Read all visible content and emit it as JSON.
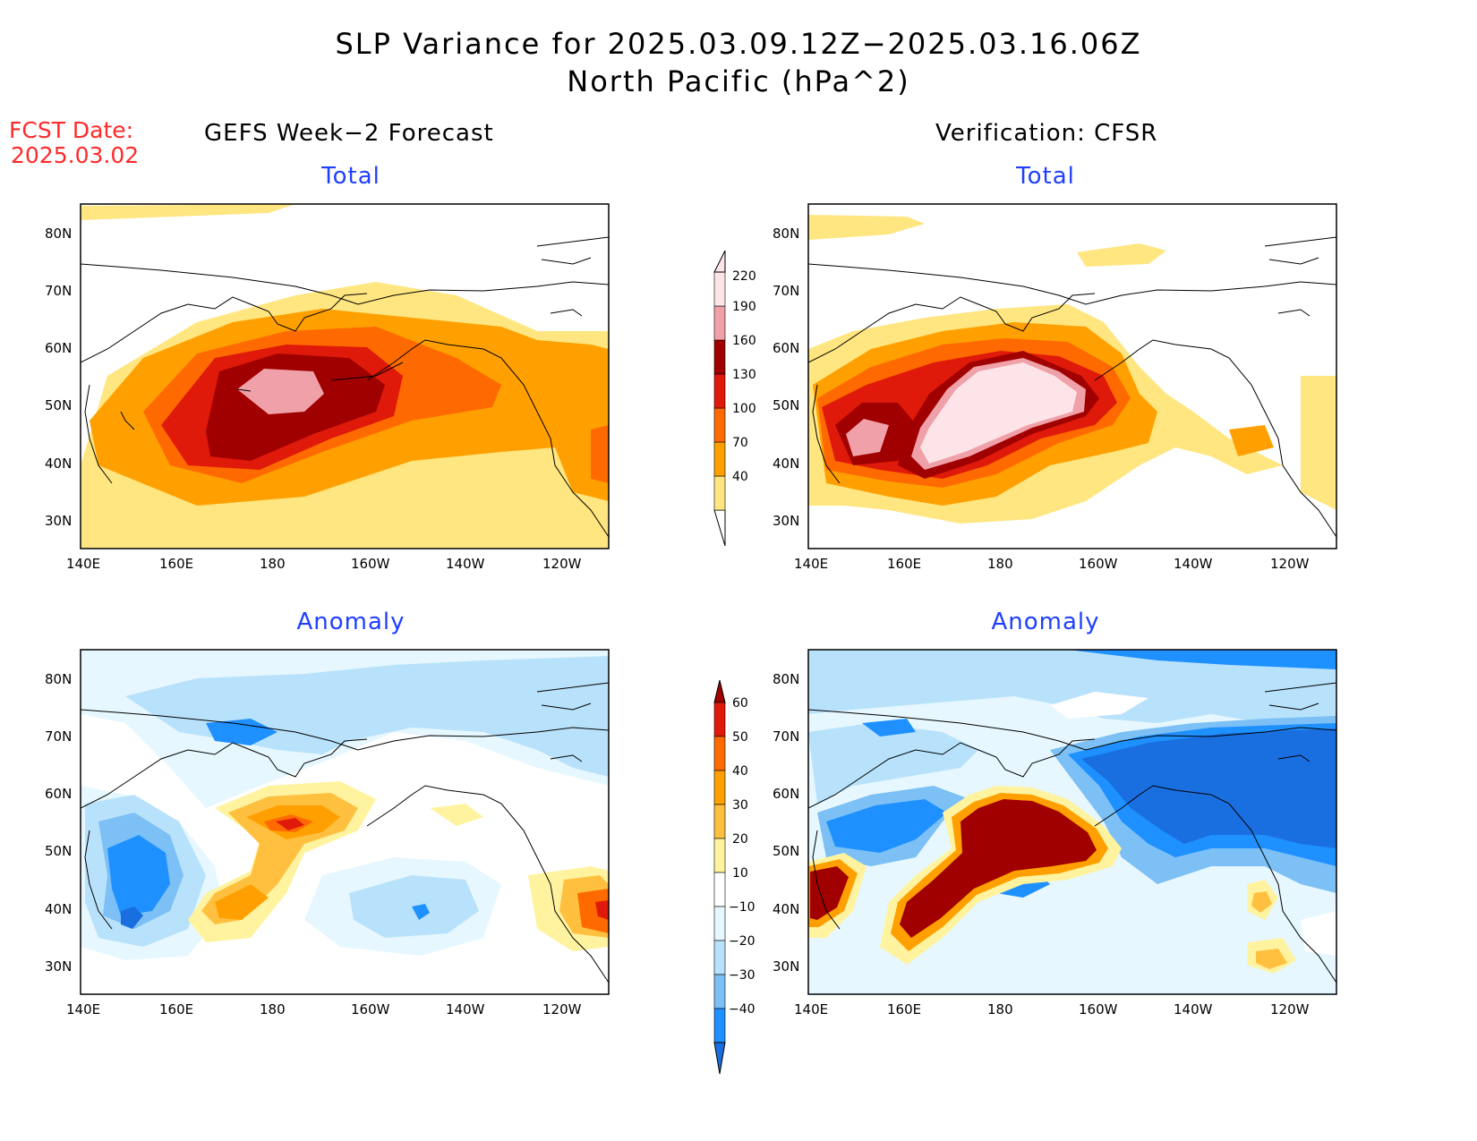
{
  "title_line1": "SLP Variance for 2025.03.09.12Z−2025.03.16.06Z",
  "title_line2": "North Pacific (hPa^2)",
  "fcst_date_label": "FCST Date:",
  "fcst_date_value": "2025.03.02",
  "left_header": "GEFS Week−2 Forecast",
  "right_header": "Verification: CFSR",
  "panels": {
    "top_left_title": "Total",
    "top_right_title": "Total",
    "bottom_left_title": "Anomaly",
    "bottom_right_title": "Anomaly"
  },
  "axes": {
    "lat_labels": [
      "80N",
      "70N",
      "60N",
      "50N",
      "40N",
      "30N"
    ],
    "lon_labels": [
      "140E",
      "160E",
      "180",
      "160W",
      "140W",
      "120W"
    ]
  },
  "colorbar_total": {
    "labels": [
      "40",
      "70",
      "100",
      "130",
      "160",
      "190",
      "220"
    ],
    "colors": [
      "#ffe680",
      "#ffa000",
      "#ff6a00",
      "#e01a0a",
      "#a00000",
      "#f0a0a8",
      "#fde4e8"
    ]
  },
  "colorbar_anomaly": {
    "labels": [
      "−40",
      "−30",
      "−20",
      "−10",
      "10",
      "20",
      "30",
      "40",
      "50",
      "60"
    ],
    "colors": [
      "#1a6fe0",
      "#1e90ff",
      "#7cc0f5",
      "#b8e2fb",
      "#e6f7ff",
      "#ffffff",
      "#fff3a0",
      "#ffc040",
      "#ffa000",
      "#ff6a00",
      "#e01a0a",
      "#a00000"
    ]
  }
}
